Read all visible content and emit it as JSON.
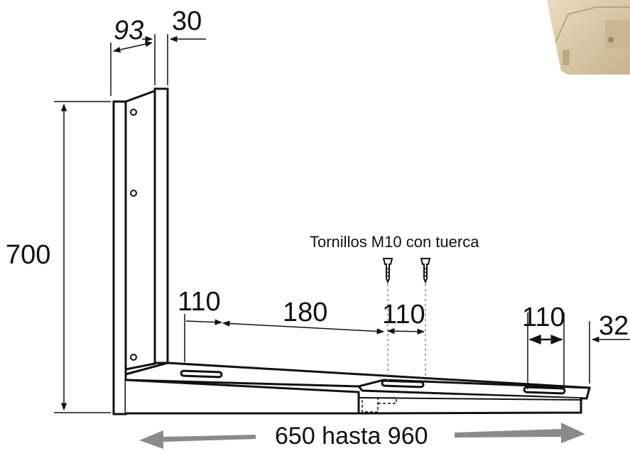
{
  "diagram": {
    "height_label": "700",
    "top_width_label": "93",
    "top_thickness_label": "30",
    "slot_spacing_1": "110",
    "slot_spacing_2": "180",
    "slot_spacing_3": "110",
    "slot_spacing_4": "110",
    "end_offset": "32",
    "screw_note": "Tornillos M10 con tuerca",
    "range_label": "650 hasta 960"
  },
  "colors": {
    "line": "#111111",
    "arrow_gray": "#8a8a8a",
    "photo_beige": "#d8c9a8"
  }
}
